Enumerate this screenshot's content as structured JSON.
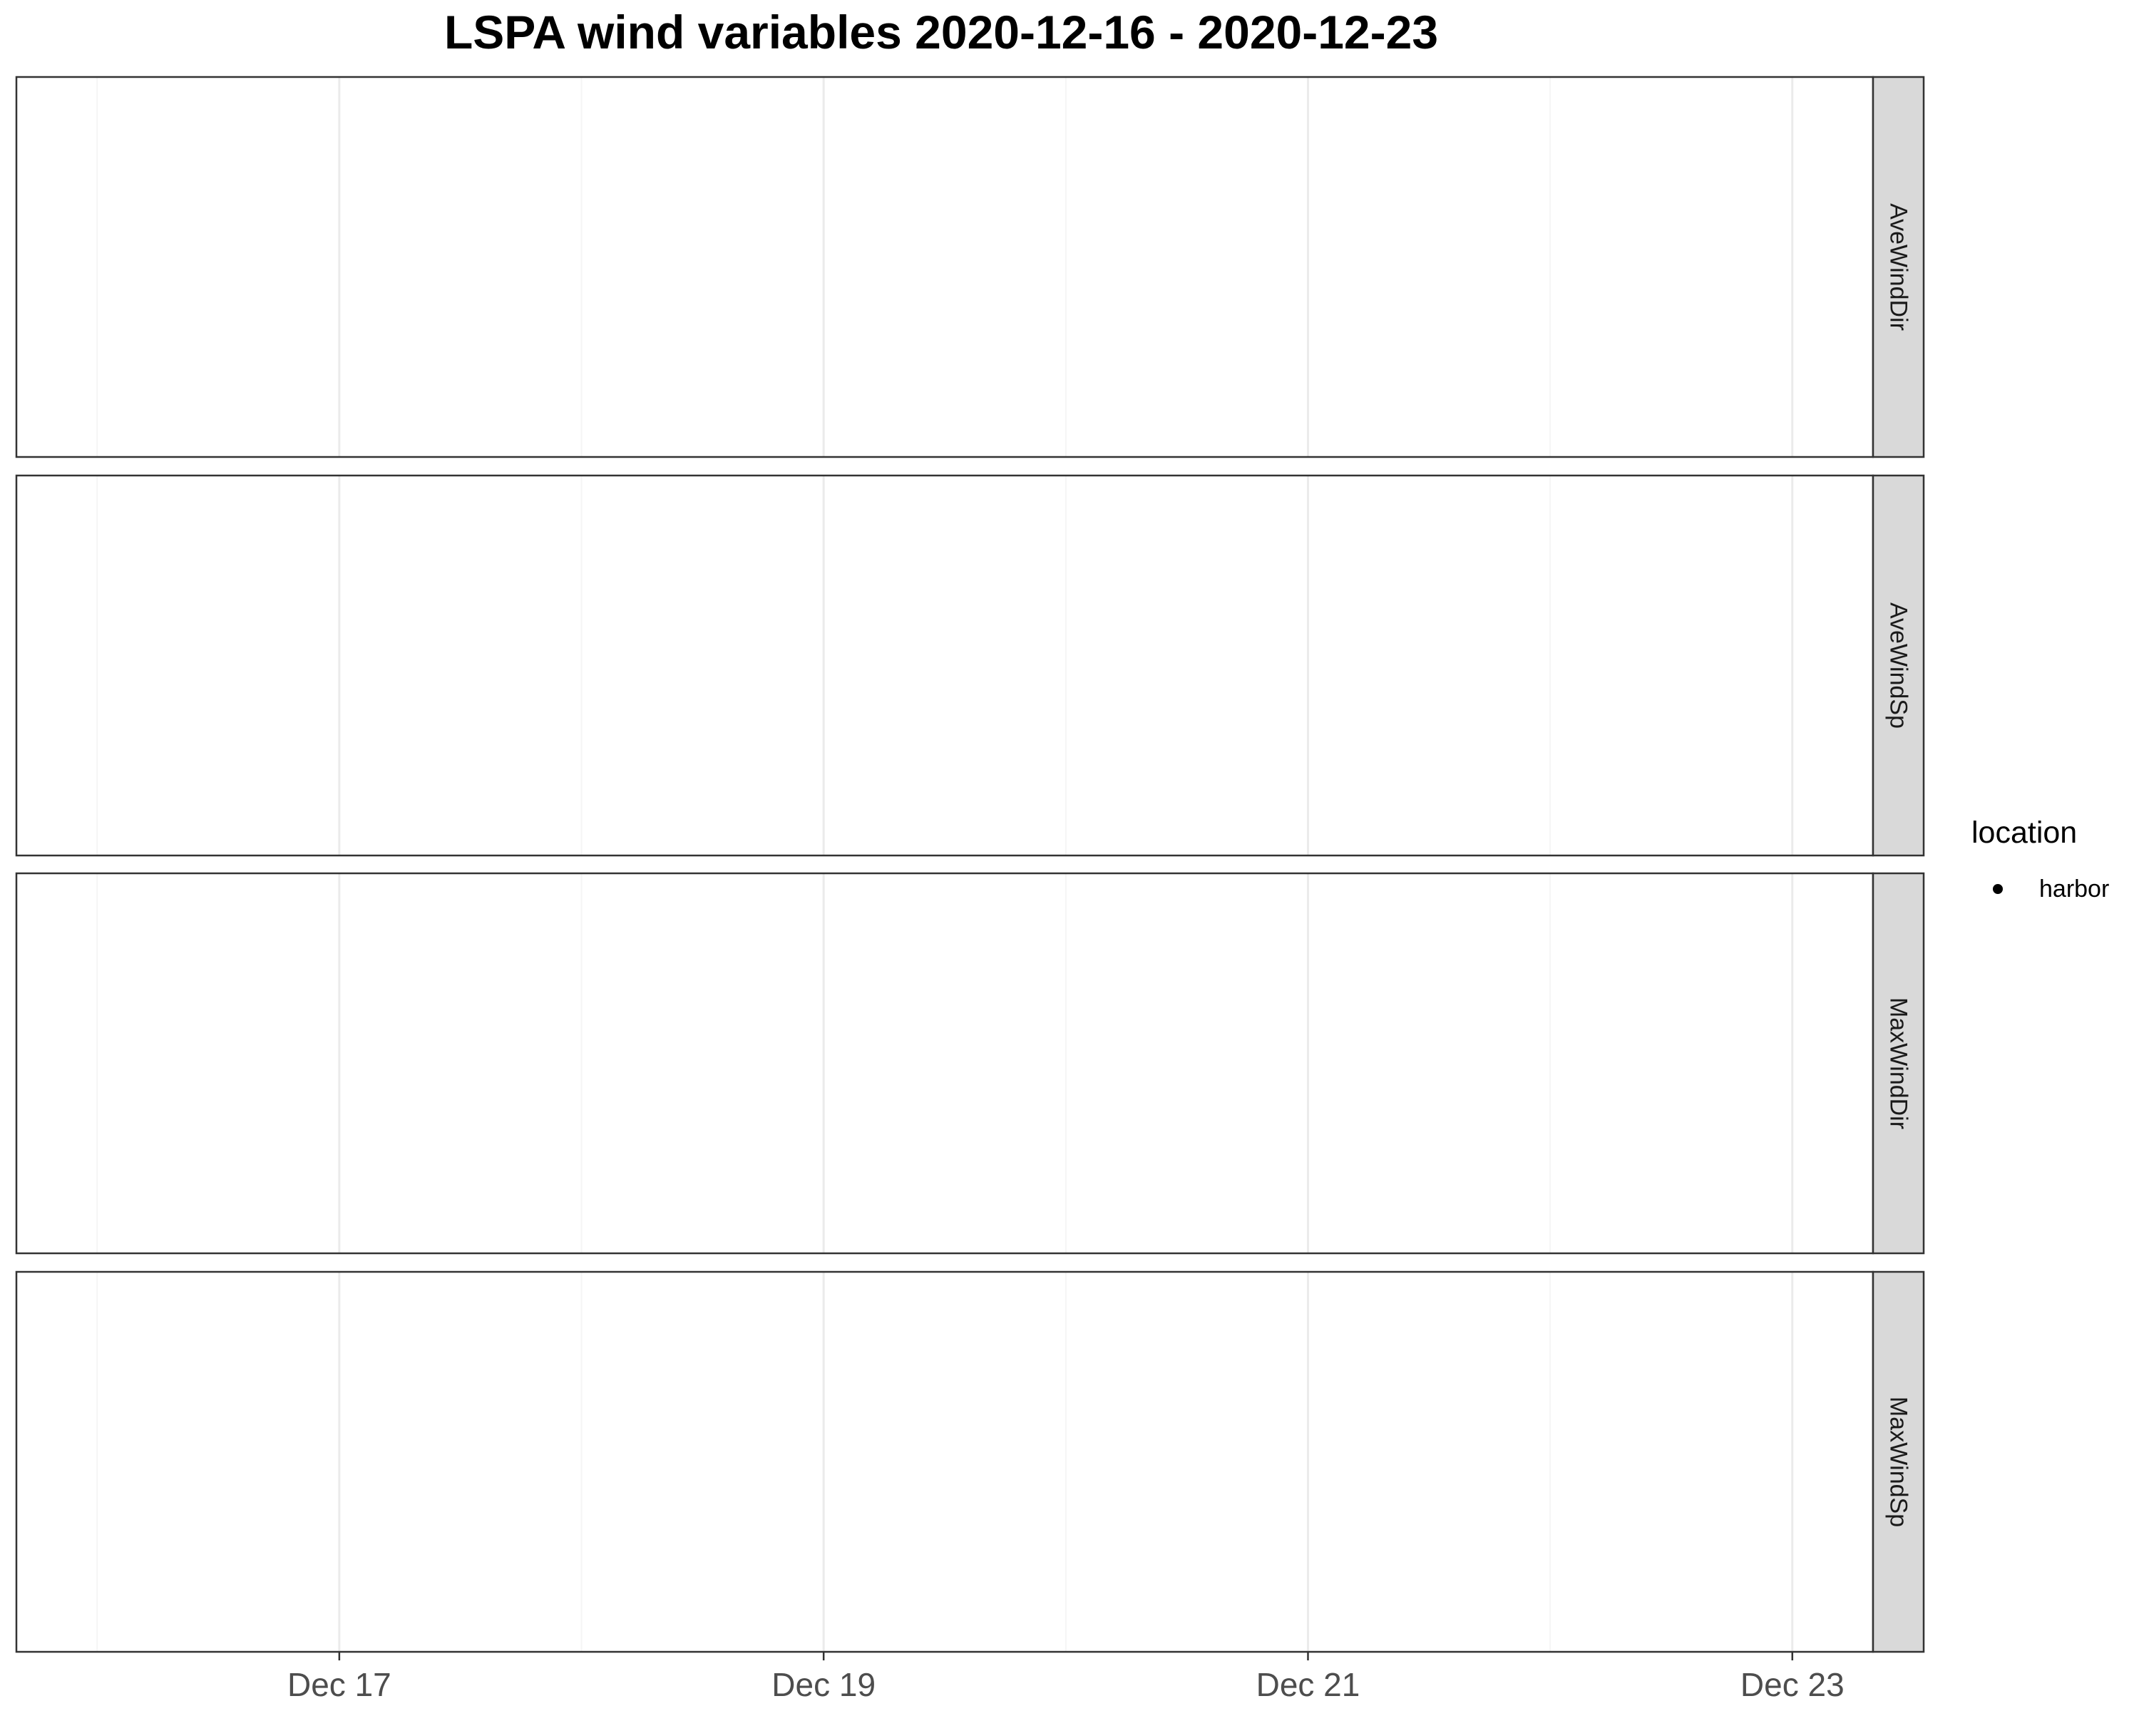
{
  "chart_data": {
    "type": "scatter",
    "title": "LSPA wind variables 2020-12-16 - 2020-12-23",
    "facets": [
      "AveWindDir",
      "AveWindSp",
      "MaxWindDir",
      "MaxWindSp"
    ],
    "xlabel": "",
    "ylabel": "",
    "xlim": [
      "2020-12-15T16:00",
      "2020-12-23T08:00"
    ],
    "x_major_ticks": [
      "2020-12-17",
      "2020-12-19",
      "2020-12-21",
      "2020-12-23"
    ],
    "x_tick_labels": [
      "Dec 17",
      "Dec 19",
      "Dec 21",
      "Dec 23"
    ],
    "x_minor_ticks": [
      "2020-12-16",
      "2020-12-18",
      "2020-12-20",
      "2020-12-22"
    ],
    "grid": true,
    "legend": {
      "title": "location",
      "position": "right",
      "items": [
        {
          "label": "harbor",
          "color": "#000000",
          "shape": "circle"
        }
      ]
    },
    "series": [
      {
        "name": "harbor",
        "values": []
      }
    ],
    "colors": {
      "panel_border": "#333333",
      "strip_fill": "#d9d9d9",
      "grid_major": "#ebebeb",
      "grid_minor": "#f5f5f5",
      "tick_text": "#4d4d4d"
    }
  }
}
